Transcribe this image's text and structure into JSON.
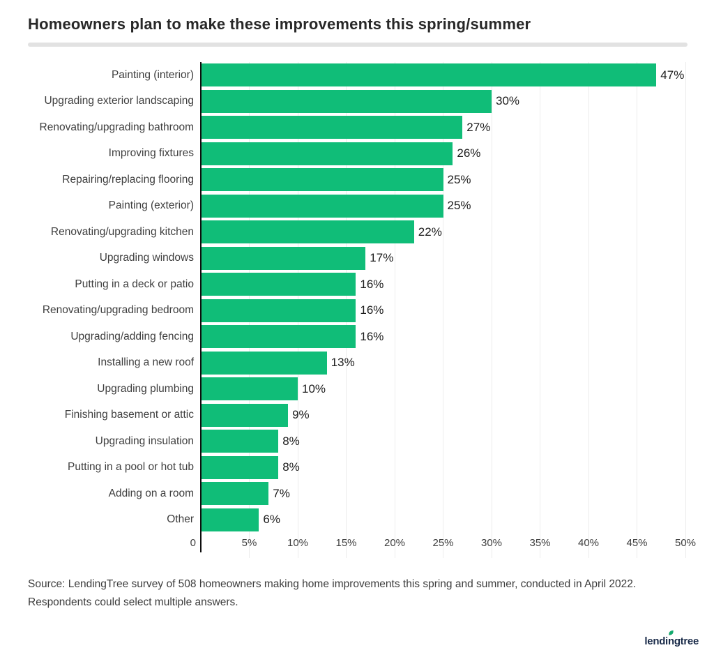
{
  "header": {
    "title": "Homeowners plan to make these improvements this spring/summer"
  },
  "chart_data": {
    "type": "bar",
    "orientation": "horizontal",
    "title": "Homeowners plan to make these improvements this spring/summer",
    "categories": [
      "Painting (interior)",
      "Upgrading exterior landscaping",
      "Renovating/upgrading bathroom",
      "Improving fixtures",
      "Repairing/replacing flooring",
      "Painting (exterior)",
      "Renovating/upgrading kitchen",
      "Upgrading windows",
      "Putting in a deck or patio",
      "Renovating/upgrading bedroom",
      "Upgrading/adding fencing",
      "Installing a new roof",
      "Upgrading plumbing",
      "Finishing basement or attic",
      "Upgrading insulation",
      "Putting in a pool or hot tub",
      "Adding on a room",
      "Other"
    ],
    "values": [
      47,
      30,
      27,
      26,
      25,
      25,
      22,
      17,
      16,
      16,
      16,
      13,
      10,
      9,
      8,
      8,
      7,
      6
    ],
    "value_labels": [
      "47%",
      "30%",
      "27%",
      "26%",
      "25%",
      "25%",
      "22%",
      "17%",
      "16%",
      "16%",
      "16%",
      "13%",
      "10%",
      "9%",
      "8%",
      "8%",
      "7%",
      "6%"
    ],
    "x_tick_values": [
      0,
      5,
      10,
      15,
      20,
      25,
      30,
      35,
      40,
      45,
      50
    ],
    "x_tick_labels": [
      "0",
      "5%",
      "10%",
      "15%",
      "20%",
      "25%",
      "30%",
      "35%",
      "40%",
      "45%",
      "50%"
    ],
    "xlim": [
      0,
      50
    ],
    "grid": true,
    "legend": false,
    "bar_color": "#10bd78",
    "gridline_color": "#ececec",
    "axis_color": "#0d0d0d"
  },
  "footer": {
    "source_lines": [
      "Source: LendingTree survey of 508 homeowners making home improvements this spring and summer, conducted in April 2022.",
      "Respondents could select multiple answers."
    ],
    "logo_text": "lendingtree",
    "logo_color": "#1a2b49",
    "logo_leaf_color": "#14b073"
  }
}
